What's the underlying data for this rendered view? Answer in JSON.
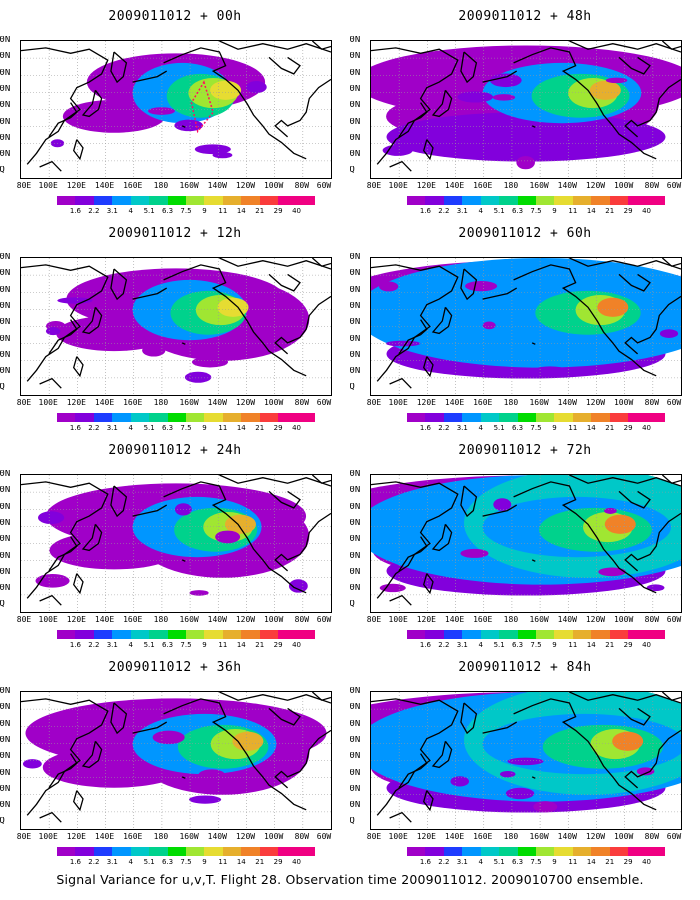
{
  "figure_caption": "Signal Variance for u,v,T. Flight 28. Observation time 2009011012. 2009010700 ensemble.",
  "chart_data": {
    "type": "heatmap",
    "map_projection": "lat-lon",
    "lat_range": [
      0,
      80
    ],
    "lon_range": [
      "80E",
      "60W"
    ],
    "lat_labels": [
      "80N",
      "70N",
      "60N",
      "50N",
      "40N",
      "30N",
      "20N",
      "10N",
      "EQ"
    ],
    "lon_labels": [
      "80E",
      "100E",
      "120E",
      "140E",
      "160E",
      "180",
      "160W",
      "140W",
      "120W",
      "100W",
      "80W",
      "60W"
    ],
    "grid": true,
    "colorbar": {
      "levels": [
        "1.6",
        "2.2",
        "3.1",
        "4",
        "5.1",
        "6.3",
        "7.5",
        "9",
        "11",
        "14",
        "21",
        "29",
        "40"
      ],
      "colors": [
        "#a000c8",
        "#8200dc",
        "#1e3cff",
        "#0096ff",
        "#00c8c8",
        "#00d28c",
        "#00dc00",
        "#a0e632",
        "#e6dc32",
        "#e6af2d",
        "#f08228",
        "#fa3c3c",
        "#f00082"
      ]
    },
    "panels": [
      {
        "title": "2009011012 + 00h",
        "lead_hours": 0,
        "column": "left",
        "row": 1,
        "peak_level": "11",
        "has_observation_marker": true
      },
      {
        "title": "2009011012 + 12h",
        "lead_hours": 12,
        "column": "left",
        "row": 2,
        "peak_level": "11"
      },
      {
        "title": "2009011012 + 24h",
        "lead_hours": 24,
        "column": "left",
        "row": 3,
        "peak_level": "14"
      },
      {
        "title": "2009011012 + 36h",
        "lead_hours": 36,
        "column": "left",
        "row": 4,
        "peak_level": "14"
      },
      {
        "title": "2009011012 + 48h",
        "lead_hours": 48,
        "column": "right",
        "row": 1,
        "peak_level": "14"
      },
      {
        "title": "2009011012 + 60h",
        "lead_hours": 60,
        "column": "right",
        "row": 2,
        "peak_level": "21"
      },
      {
        "title": "2009011012 + 72h",
        "lead_hours": 72,
        "column": "right",
        "row": 3,
        "peak_level": "21"
      },
      {
        "title": "2009011012 + 84h",
        "lead_hours": 84,
        "column": "right",
        "row": 4,
        "peak_level": "21"
      }
    ]
  }
}
